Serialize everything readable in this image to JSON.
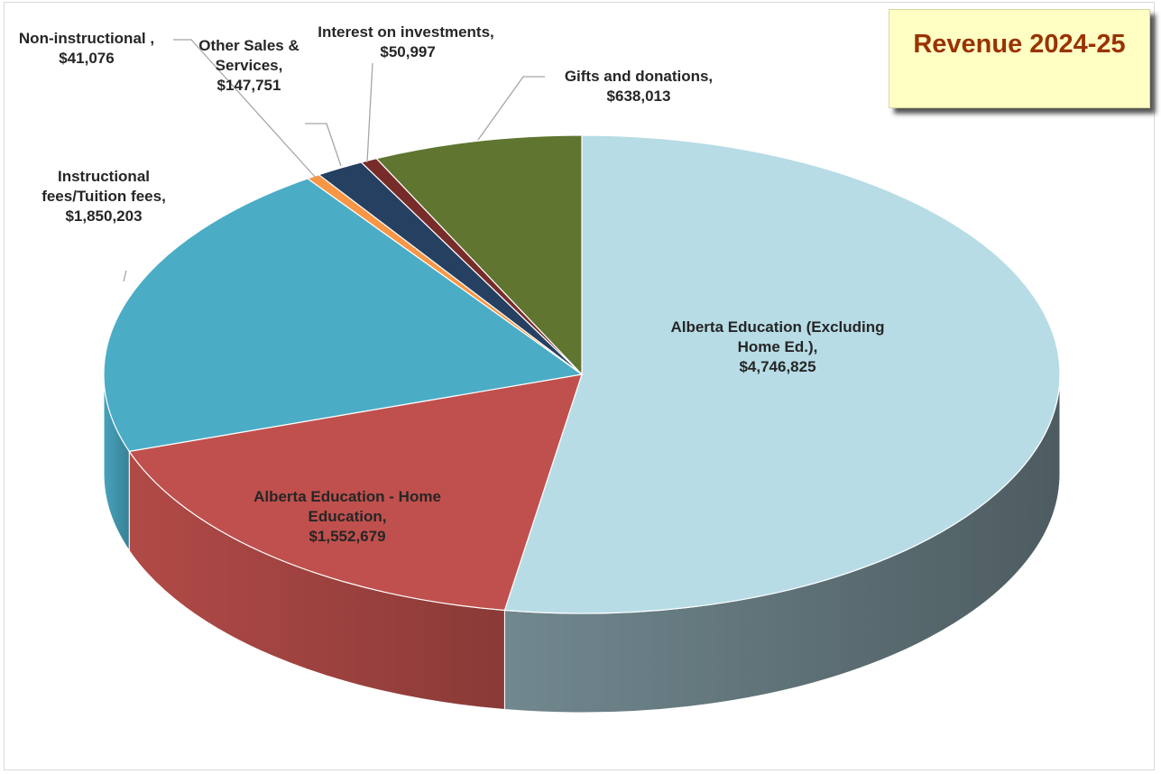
{
  "chart_data": {
    "type": "pie3d",
    "title": "Revenue 2024-25",
    "categories": [
      "Alberta Education (Excluding Home Ed.),",
      "Alberta Education - Home Education,",
      "Instructional fees/Tuition fees,",
      "Non-instructional ,",
      "Other Sales & Services,",
      "Interest on investments,",
      "Gifts and donations,"
    ],
    "values": [
      4746825,
      1552679,
      1850203,
      41076,
      147751,
      50997,
      638013
    ],
    "value_labels": [
      "$4,746,825",
      "$1,552,679",
      "$1,850,203",
      "$41,076",
      "$147,751",
      "$50,997",
      "$638,013"
    ],
    "colors": [
      "#b7dce6",
      "#c0504d",
      "#4bacc6",
      "#f79646",
      "#254061",
      "#772c2a",
      "#5f7530"
    ]
  }
}
